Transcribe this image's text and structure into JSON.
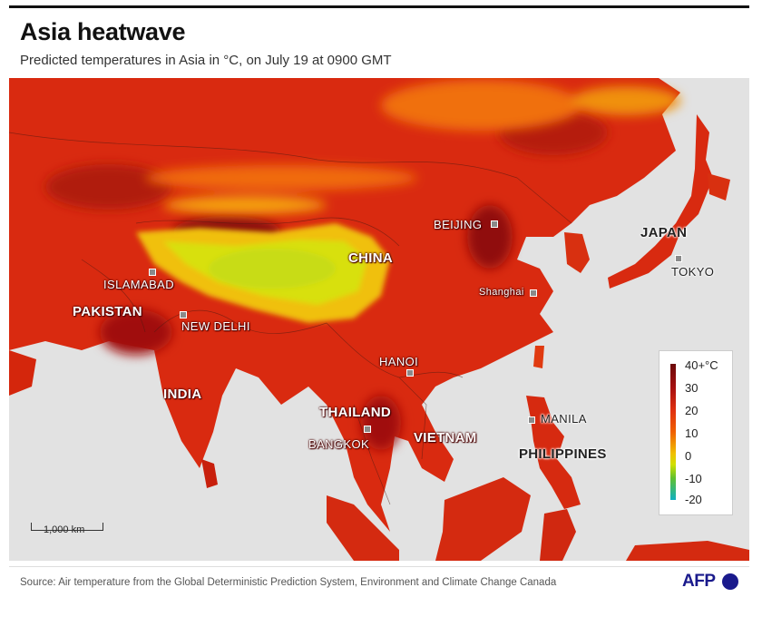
{
  "title": "Asia heatwave",
  "subtitle": "Predicted temperatures in Asia in °C, on July 19 at 0900 GMT",
  "source": "Source: Air temperature from the Global Deterministic Prediction System, Environment and Climate Change Canada",
  "logo": "AFP",
  "scale_label": "1,000 km",
  "countries": {
    "china": "CHINA",
    "japan": "JAPAN",
    "pakistan": "PAKISTAN",
    "india": "INDIA",
    "thailand": "THAILAND",
    "vietnam": "VIETNAM",
    "philippines": "PHILIPPINES"
  },
  "cities": {
    "beijing": "BEIJING",
    "tokyo": "TOKYO",
    "shanghai": "Shanghai",
    "islamabad": "ISLAMABAD",
    "new_delhi": "NEW DELHI",
    "hanoi": "HANOI",
    "bangkok": "BANGKOK",
    "manila": "MANILA"
  },
  "legend": {
    "ticks": [
      "40+°C",
      "30",
      "20",
      "10",
      "0",
      "-10",
      "-20"
    ],
    "colors": [
      "#6b0a0a",
      "#a81010",
      "#e03010",
      "#f06000",
      "#f0c000",
      "#60c030",
      "#10b0c0"
    ]
  }
}
